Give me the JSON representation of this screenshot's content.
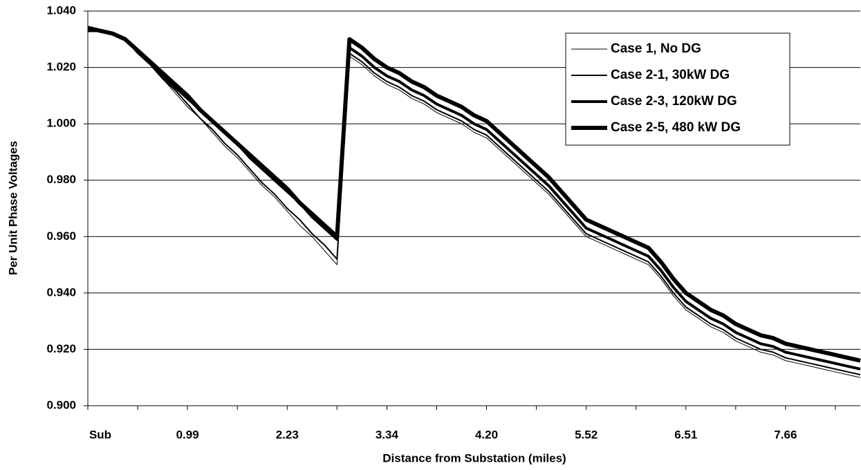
{
  "chart_data": {
    "type": "line",
    "x_label": "Distance from Substation (miles)",
    "y_label": "Per Unit Phase Voltages",
    "categories": [
      "Sub",
      null,
      null,
      null,
      null,
      null,
      null,
      null,
      "0.99",
      null,
      null,
      null,
      null,
      null,
      null,
      null,
      "2.23",
      null,
      null,
      null,
      null,
      null,
      null,
      null,
      "3.34",
      null,
      null,
      null,
      null,
      null,
      null,
      null,
      "4.20",
      null,
      null,
      null,
      null,
      null,
      null,
      null,
      "5.52",
      null,
      null,
      null,
      null,
      null,
      null,
      null,
      "6.51",
      null,
      null,
      null,
      null,
      null,
      null,
      null,
      "7.66",
      null,
      null,
      null,
      null,
      null,
      null
    ],
    "ylim": [
      0.9,
      1.04
    ],
    "yticks": [
      {
        "value": 0.9,
        "label": "0.900"
      },
      {
        "value": 0.92,
        "label": "0.920"
      },
      {
        "value": 0.94,
        "label": "0.940"
      },
      {
        "value": 0.96,
        "label": "0.960"
      },
      {
        "value": 0.98,
        "label": "0.980"
      },
      {
        "value": 1.0,
        "label": "1.000"
      },
      {
        "value": 1.02,
        "label": "1.020"
      },
      {
        "value": 1.04,
        "label": "1.040"
      }
    ],
    "grid": true,
    "legend": "top-right",
    "series": [
      {
        "name": "Case 1, No DG",
        "color": "#000000",
        "width": 1,
        "values": [
          1.033,
          1.033,
          1.032,
          1.03,
          1.025,
          1.021,
          1.016,
          1.011,
          1.006,
          1.002,
          0.997,
          0.992,
          0.988,
          0.983,
          0.978,
          0.974,
          0.969,
          0.964,
          0.96,
          0.955,
          0.95,
          1.024,
          1.021,
          1.017,
          1.014,
          1.012,
          1.009,
          1.007,
          1.004,
          1.002,
          1.0,
          0.997,
          0.995,
          0.991,
          0.987,
          0.983,
          0.979,
          0.975,
          0.97,
          0.965,
          0.96,
          0.958,
          0.956,
          0.954,
          0.952,
          0.95,
          0.945,
          0.939,
          0.934,
          0.931,
          0.928,
          0.926,
          0.923,
          0.921,
          0.919,
          0.918,
          0.916,
          0.915,
          0.914,
          0.913,
          0.912,
          0.911,
          0.91
        ]
      },
      {
        "name": "Case 2-1, 30kW DG",
        "color": "#000000",
        "width": 2,
        "values": [
          1.033,
          1.033,
          1.032,
          1.03,
          1.025,
          1.021,
          1.016,
          1.012,
          1.007,
          1.002,
          0.998,
          0.993,
          0.989,
          0.984,
          0.979,
          0.975,
          0.97,
          0.966,
          0.961,
          0.957,
          0.952,
          1.025,
          1.022,
          1.018,
          1.015,
          1.013,
          1.01,
          1.008,
          1.005,
          1.003,
          1.001,
          0.998,
          0.996,
          0.992,
          0.988,
          0.984,
          0.98,
          0.976,
          0.971,
          0.966,
          0.961,
          0.959,
          0.957,
          0.955,
          0.953,
          0.951,
          0.946,
          0.94,
          0.935,
          0.932,
          0.929,
          0.927,
          0.924,
          0.922,
          0.92,
          0.919,
          0.917,
          0.916,
          0.915,
          0.914,
          0.913,
          0.912,
          0.911
        ]
      },
      {
        "name": "Case 2-3, 120kW DG",
        "color": "#000000",
        "width": 4,
        "values": [
          1.033,
          1.033,
          1.032,
          1.03,
          1.026,
          1.022,
          1.017,
          1.013,
          1.009,
          1.005,
          1.001,
          0.997,
          0.993,
          0.988,
          0.984,
          0.98,
          0.976,
          0.972,
          0.967,
          0.963,
          0.959,
          1.027,
          1.024,
          1.02,
          1.017,
          1.015,
          1.012,
          1.01,
          1.007,
          1.005,
          1.003,
          1.0,
          0.998,
          0.994,
          0.99,
          0.986,
          0.982,
          0.978,
          0.973,
          0.968,
          0.963,
          0.961,
          0.959,
          0.957,
          0.955,
          0.953,
          0.948,
          0.942,
          0.937,
          0.934,
          0.931,
          0.929,
          0.926,
          0.924,
          0.922,
          0.921,
          0.919,
          0.918,
          0.917,
          0.916,
          0.915,
          0.914,
          0.913
        ]
      },
      {
        "name": "Case 2-5, 480 kW DG",
        "color": "#000000",
        "width": 6,
        "values": [
          1.034,
          1.033,
          1.032,
          1.03,
          1.026,
          1.022,
          1.018,
          1.014,
          1.01,
          1.005,
          1.001,
          0.997,
          0.993,
          0.989,
          0.985,
          0.981,
          0.977,
          0.972,
          0.968,
          0.964,
          0.96,
          1.03,
          1.027,
          1.023,
          1.02,
          1.018,
          1.015,
          1.013,
          1.01,
          1.008,
          1.006,
          1.003,
          1.001,
          0.997,
          0.993,
          0.989,
          0.985,
          0.981,
          0.976,
          0.971,
          0.966,
          0.964,
          0.962,
          0.96,
          0.958,
          0.956,
          0.951,
          0.945,
          0.94,
          0.937,
          0.934,
          0.932,
          0.929,
          0.927,
          0.925,
          0.924,
          0.922,
          0.921,
          0.92,
          0.919,
          0.918,
          0.917,
          0.916
        ]
      }
    ]
  }
}
